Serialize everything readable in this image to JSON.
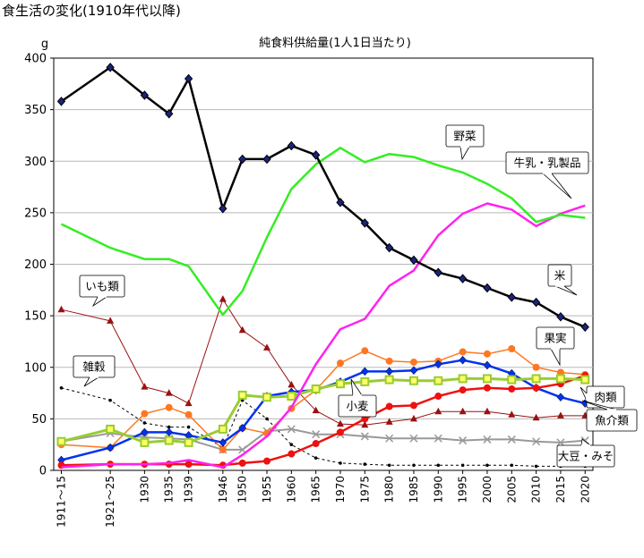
{
  "figure_title": "食生活の変化(1910年代以降)",
  "chart_data": {
    "type": "line",
    "title": "純食料供給量(1人1日当たり)",
    "ylabel": "g",
    "xlabel": "",
    "ylim": [
      0,
      400
    ],
    "y_ticks": [
      0,
      50,
      100,
      150,
      200,
      250,
      300,
      350,
      400
    ],
    "grid": true,
    "legend": "callouts",
    "x": [
      "1911～15",
      "1921～25",
      "1930",
      "1935",
      "1939",
      "1946",
      "1950",
      "1955",
      "1960",
      "1965",
      "1970",
      "1975",
      "1980",
      "1985",
      "1990",
      "1995",
      "2000",
      "2005",
      "2010",
      "2015",
      "2020"
    ],
    "series": [
      {
        "name": "米",
        "color": "#000000",
        "marker": "diamond",
        "width": 2.5,
        "values": [
          358,
          391,
          364,
          346,
          380,
          254,
          302,
          302,
          315,
          306,
          260,
          240,
          216,
          204,
          192,
          186,
          177,
          168,
          163,
          149,
          139
        ]
      },
      {
        "name": "野菜",
        "color": "#33ee22",
        "marker": "none",
        "width": 2.5,
        "values": [
          239,
          216,
          205,
          205,
          198,
          151,
          174,
          226,
          273,
          297,
          313,
          299,
          307,
          304,
          296,
          289,
          278,
          264,
          241,
          248,
          245
        ]
      },
      {
        "name": "牛乳・乳製品",
        "color": "#ff22ee",
        "marker": "none",
        "width": 2.5,
        "values": [
          3,
          6,
          6,
          7,
          10,
          3,
          15,
          33,
          61,
          103,
          137,
          147,
          179,
          194,
          228,
          249,
          259,
          253,
          237,
          249,
          257
        ]
      },
      {
        "name": "果実",
        "color": "#ff7722",
        "marker": "circle",
        "width": 1.5,
        "values": [
          25,
          22,
          55,
          61,
          54,
          20,
          41,
          36,
          60,
          78,
          104,
          116,
          106,
          105,
          106,
          115,
          113,
          118,
          100,
          95,
          93
        ]
      },
      {
        "name": "肉類",
        "color": "#0033ee",
        "marker": "diamond",
        "width": 2.5,
        "values": [
          10,
          22,
          37,
          37,
          34,
          27,
          41,
          72,
          76,
          78,
          86,
          96,
          96,
          97,
          103,
          107,
          102,
          94,
          80,
          71,
          65
        ]
      },
      {
        "name": "魚介類",
        "color": "#ee1111",
        "marker": "circle",
        "width": 2.5,
        "values": [
          5,
          6,
          6,
          6,
          6,
          5,
          7,
          9,
          16,
          26,
          37,
          50,
          62,
          63,
          72,
          78,
          80,
          79,
          80,
          84,
          92
        ]
      },
      {
        "name": "小麦",
        "color": "#99cc33",
        "marker": "square",
        "width": 3,
        "values": [
          28,
          40,
          27,
          29,
          27,
          40,
          73,
          71,
          72,
          79,
          84,
          86,
          88,
          87,
          87,
          89,
          89,
          88,
          89,
          89,
          88
        ]
      },
      {
        "name": "大豆・みそ",
        "color": "#999999",
        "marker": "x",
        "width": 2,
        "values": [
          28,
          36,
          32,
          31,
          30,
          20,
          20,
          38,
          40,
          35,
          35,
          33,
          31,
          31,
          31,
          29,
          30,
          30,
          28,
          27,
          29
        ]
      },
      {
        "name": "いも類",
        "color": "#991111",
        "marker": "triangle",
        "width": 1,
        "values": [
          156,
          145,
          81,
          75,
          65,
          166,
          136,
          119,
          83,
          58,
          45,
          44,
          47,
          50,
          57,
          57,
          57,
          54,
          51,
          53,
          53
        ]
      },
      {
        "name": "雑穀",
        "color": "#000000",
        "marker": "dot",
        "width": 1,
        "dashed": true,
        "values": [
          80,
          68,
          46,
          42,
          42,
          22,
          68,
          50,
          25,
          12,
          7,
          6,
          5,
          5,
          5,
          5,
          5,
          5,
          4,
          4,
          4
        ]
      }
    ]
  }
}
